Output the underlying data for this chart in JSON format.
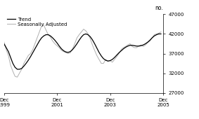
{
  "ylabel_right": "no.",
  "xlim": [
    0,
    72
  ],
  "ylim": [
    27000,
    47000
  ],
  "yticks": [
    27000,
    32000,
    37000,
    42000,
    47000
  ],
  "xtick_positions": [
    0,
    24,
    48,
    72
  ],
  "xtick_labels": [
    "Dec\n1999",
    "Dec\n2001",
    "Dec\n2003",
    "Dec\n2005"
  ],
  "trend_color": "#000000",
  "sa_color": "#b0b0b0",
  "legend_trend": "Trend",
  "legend_sa": "Seasonally Adjusted",
  "background_color": "#ffffff",
  "trend": [
    39500,
    38500,
    37500,
    36000,
    34500,
    33500,
    33000,
    33000,
    33200,
    33800,
    34500,
    35300,
    36200,
    37200,
    38200,
    39200,
    40200,
    41000,
    41500,
    41800,
    41800,
    41500,
    41000,
    40400,
    39700,
    38900,
    38200,
    37700,
    37400,
    37300,
    37500,
    38000,
    38700,
    39500,
    40400,
    41200,
    41800,
    42000,
    41800,
    41300,
    40500,
    39500,
    38400,
    37300,
    36400,
    35700,
    35300,
    35100,
    35200,
    35500,
    36000,
    36600,
    37200,
    37700,
    38200,
    38600,
    38900,
    39100,
    39100,
    39000,
    38900,
    38900,
    39000,
    39200,
    39500,
    39900,
    40400,
    41000,
    41500,
    41800,
    42000,
    42000
  ],
  "sa": [
    40000,
    38000,
    36500,
    34000,
    32500,
    31200,
    31000,
    32000,
    33000,
    34500,
    35500,
    36500,
    37000,
    38000,
    39500,
    41000,
    42500,
    44000,
    44200,
    43000,
    41800,
    41200,
    40200,
    39500,
    39000,
    38500,
    37800,
    37500,
    37200,
    37000,
    37200,
    38200,
    39500,
    41000,
    41800,
    42500,
    43200,
    42800,
    42000,
    40800,
    39200,
    37800,
    36500,
    35500,
    34500,
    34500,
    35500,
    35000,
    35200,
    34800,
    35500,
    36200,
    37000,
    38000,
    38500,
    38800,
    39200,
    39500,
    38800,
    38500,
    38500,
    39000,
    39200,
    38800,
    39200,
    39800,
    40200,
    41000,
    41800,
    42000,
    42200,
    42500
  ]
}
